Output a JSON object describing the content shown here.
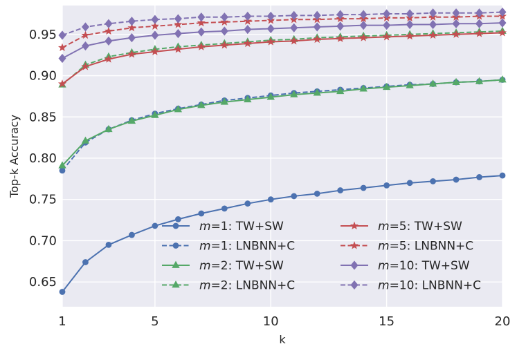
{
  "chart_data": {
    "type": "line",
    "title": "",
    "xlabel": "k",
    "ylabel": "Top-k Accuracy",
    "xlim": [
      1,
      20
    ],
    "ylim": [
      0.62,
      0.985
    ],
    "xticks": [
      1,
      5,
      10,
      15,
      20
    ],
    "xtick_labels": [
      "1",
      "5",
      "10",
      "15",
      "20"
    ],
    "yticks": [
      0.65,
      0.7,
      0.75,
      0.8,
      0.85,
      0.9,
      0.95
    ],
    "ytick_labels": [
      "0.65",
      "0.70",
      "0.75",
      "0.80",
      "0.85",
      "0.90",
      "0.95"
    ],
    "grid": true,
    "legend_position": "lower-right",
    "x": [
      1,
      2,
      3,
      4,
      5,
      6,
      7,
      8,
      9,
      10,
      11,
      12,
      13,
      14,
      15,
      16,
      17,
      18,
      19,
      20
    ],
    "series": [
      {
        "name": "m=1: TW+SW",
        "legend_italic": "m",
        "legend_rest": "=1: TW+SW",
        "color": "#4c72b0",
        "style": "solid",
        "marker": "circle",
        "values": [
          0.638,
          0.674,
          0.695,
          0.707,
          0.718,
          0.726,
          0.733,
          0.739,
          0.745,
          0.75,
          0.754,
          0.757,
          0.761,
          0.764,
          0.767,
          0.77,
          0.772,
          0.774,
          0.777,
          0.779
        ]
      },
      {
        "name": "m=1: LNBNN+C",
        "legend_italic": "m",
        "legend_rest": "=1: LNBNN+C",
        "color": "#4c72b0",
        "style": "dashed",
        "marker": "circle",
        "values": [
          0.785,
          0.819,
          0.835,
          0.846,
          0.854,
          0.86,
          0.865,
          0.87,
          0.873,
          0.876,
          0.879,
          0.881,
          0.883,
          0.885,
          0.887,
          0.889,
          0.89,
          0.892,
          0.893,
          0.895
        ]
      },
      {
        "name": "m=2: TW+SW",
        "legend_italic": "m",
        "legend_rest": "=2: TW+SW",
        "color": "#55a868",
        "style": "solid",
        "marker": "triangle",
        "values": [
          0.791,
          0.821,
          0.835,
          0.845,
          0.852,
          0.859,
          0.864,
          0.868,
          0.871,
          0.874,
          0.877,
          0.879,
          0.881,
          0.884,
          0.886,
          0.888,
          0.89,
          0.892,
          0.893,
          0.895
        ]
      },
      {
        "name": "m=2: LNBNN+C",
        "legend_italic": "m",
        "legend_rest": "=2: LNBNN+C",
        "color": "#55a868",
        "style": "dashed",
        "marker": "triangle",
        "values": [
          0.889,
          0.913,
          0.923,
          0.928,
          0.932,
          0.935,
          0.937,
          0.939,
          0.941,
          0.943,
          0.944,
          0.946,
          0.947,
          0.948,
          0.949,
          0.95,
          0.951,
          0.952,
          0.953,
          0.954
        ]
      },
      {
        "name": "m=5: TW+SW",
        "legend_italic": "m",
        "legend_rest": "=5: TW+SW",
        "color": "#c44e52",
        "style": "solid",
        "marker": "star",
        "values": [
          0.89,
          0.911,
          0.92,
          0.926,
          0.929,
          0.932,
          0.935,
          0.937,
          0.939,
          0.941,
          0.942,
          0.944,
          0.945,
          0.946,
          0.947,
          0.948,
          0.949,
          0.95,
          0.951,
          0.952
        ]
      },
      {
        "name": "m=5: LNBNN+C",
        "legend_italic": "m",
        "legend_rest": "=5: LNBNN+C",
        "color": "#c44e52",
        "style": "dashed",
        "marker": "star",
        "values": [
          0.934,
          0.949,
          0.954,
          0.958,
          0.96,
          0.962,
          0.964,
          0.965,
          0.966,
          0.967,
          0.968,
          0.968,
          0.969,
          0.969,
          0.97,
          0.97,
          0.971,
          0.971,
          0.972,
          0.972
        ]
      },
      {
        "name": "m=10: TW+SW",
        "legend_italic": "m",
        "legend_rest": "=10: TW+SW",
        "color": "#8172b2",
        "style": "solid",
        "marker": "diamond",
        "values": [
          0.921,
          0.936,
          0.942,
          0.946,
          0.949,
          0.951,
          0.953,
          0.954,
          0.956,
          0.957,
          0.958,
          0.959,
          0.96,
          0.961,
          0.961,
          0.962,
          0.962,
          0.963,
          0.963,
          0.964
        ]
      },
      {
        "name": "m=10: LNBNN+C",
        "legend_italic": "m",
        "legend_rest": "=10: LNBNN+C",
        "color": "#8172b2",
        "style": "dashed",
        "marker": "diamond",
        "values": [
          0.949,
          0.959,
          0.963,
          0.966,
          0.968,
          0.969,
          0.971,
          0.971,
          0.972,
          0.972,
          0.973,
          0.973,
          0.974,
          0.974,
          0.975,
          0.975,
          0.976,
          0.976,
          0.976,
          0.977
        ]
      }
    ]
  }
}
